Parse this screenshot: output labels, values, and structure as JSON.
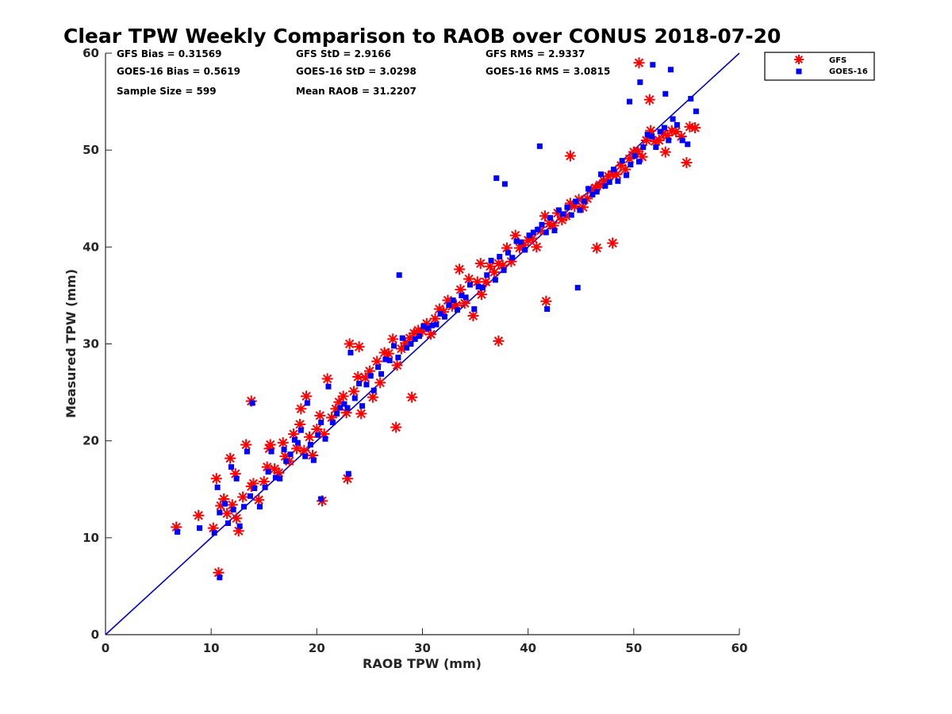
{
  "chart_data": {
    "type": "scatter",
    "title": "Clear TPW Weekly Comparison to RAOB over CONUS 2018-07-20",
    "xlabel": "RAOB TPW (mm)",
    "ylabel": "Measured TPW (mm)",
    "xlim": [
      0,
      60
    ],
    "ylim": [
      0,
      60
    ],
    "xticks": [
      "0",
      "10",
      "20",
      "30",
      "40",
      "50",
      "60"
    ],
    "yticks": [
      "0",
      "10",
      "20",
      "30",
      "40",
      "50",
      "60"
    ],
    "grid": false,
    "legend_position": "top-right outside",
    "stats": [
      {
        "label": "GFS Bias = 0.31569"
      },
      {
        "label": "GFS StD = 2.9166"
      },
      {
        "label": "GFS RMS = 2.9337"
      },
      {
        "label": "GOES-16 Bias = 0.5619"
      },
      {
        "label": "GOES-16 StD = 3.0298"
      },
      {
        "label": "GOES-16 RMS = 3.0815"
      },
      {
        "label": "Sample Size = 599"
      },
      {
        "label": "Mean RAOB = 31.2207"
      }
    ],
    "reference_line": {
      "x": [
        0,
        60
      ],
      "y": [
        0,
        60
      ],
      "color": "#0000cc"
    },
    "series": [
      {
        "name": "GFS",
        "marker": "asterisk",
        "color": "#ff0000",
        "x": [
          6.7,
          8.8,
          10.2,
          10.5,
          10.9,
          11.2,
          11.5,
          11.8,
          12.0,
          12.3,
          12.6,
          13.0,
          13.3,
          13.8,
          14.0,
          14.5,
          15.0,
          15.3,
          15.6,
          16.0,
          16.4,
          16.8,
          17.0,
          17.4,
          17.8,
          18.1,
          18.4,
          18.8,
          19.0,
          19.3,
          19.6,
          20.0,
          20.3,
          20.7,
          21.0,
          21.4,
          21.8,
          22.1,
          22.5,
          22.8,
          23.1,
          23.5,
          23.9,
          24.2,
          24.6,
          25.0,
          25.3,
          25.7,
          26.0,
          26.4,
          26.8,
          27.2,
          27.6,
          28.0,
          28.4,
          28.8,
          29.2,
          29.6,
          30.0,
          30.4,
          30.8,
          31.2,
          31.6,
          32.0,
          32.4,
          32.8,
          33.2,
          33.6,
          34.0,
          34.4,
          34.8,
          35.2,
          35.6,
          36.0,
          36.4,
          36.8,
          37.2,
          37.6,
          38.0,
          38.4,
          38.8,
          39.2,
          39.6,
          40.0,
          40.4,
          40.8,
          41.2,
          41.6,
          42.0,
          42.4,
          42.8,
          43.2,
          43.6,
          44.0,
          44.4,
          44.8,
          45.2,
          45.6,
          46.0,
          46.4,
          46.8,
          47.2,
          47.6,
          48.0,
          48.4,
          48.8,
          49.2,
          49.6,
          50.0,
          50.4,
          50.8,
          51.2,
          51.6,
          52.0,
          52.4,
          52.8,
          53.2,
          53.6,
          54.0,
          54.5,
          55.0,
          55.3,
          55.8,
          13.8,
          27.5,
          29.0,
          10.7,
          22.9,
          37.2,
          41.7,
          50.5,
          51.5,
          35.5,
          12.4,
          18.5,
          15.5,
          20.5,
          24.0,
          33.5,
          44.0,
          48.0,
          53.0,
          46.5
        ],
        "y": [
          11.1,
          12.3,
          11.0,
          16.1,
          13.3,
          14.0,
          12.5,
          18.2,
          13.4,
          16.6,
          10.7,
          14.2,
          19.6,
          15.3,
          15.6,
          13.9,
          15.8,
          17.3,
          19.6,
          17.1,
          16.7,
          19.8,
          18.4,
          17.9,
          20.7,
          19.2,
          21.7,
          19.0,
          24.6,
          20.4,
          18.5,
          21.2,
          22.6,
          20.7,
          26.4,
          22.4,
          23.3,
          24.0,
          24.6,
          22.9,
          30.0,
          25.1,
          26.6,
          22.8,
          26.5,
          27.2,
          24.5,
          28.2,
          26.0,
          29.1,
          29.0,
          30.5,
          27.8,
          29.5,
          30.1,
          30.6,
          31.1,
          31.4,
          31.3,
          32.1,
          31.0,
          32.6,
          33.6,
          33.3,
          34.5,
          33.9,
          34.0,
          35.6,
          34.2,
          36.7,
          32.9,
          36.4,
          35.1,
          36.4,
          38.0,
          37.4,
          38.3,
          38.1,
          39.9,
          38.5,
          41.2,
          39.9,
          40.2,
          40.7,
          40.9,
          40.0,
          41.7,
          43.2,
          42.4,
          42.2,
          43.5,
          42.8,
          43.2,
          44.5,
          44.2,
          44.9,
          44.1,
          45.0,
          45.9,
          46.1,
          46.4,
          46.8,
          47.3,
          47.5,
          47.5,
          48.4,
          48.0,
          49.1,
          49.8,
          49.9,
          49.3,
          51.0,
          52.0,
          50.9,
          51.0,
          51.7,
          51.5,
          52.0,
          51.9,
          51.4,
          48.7,
          52.4,
          52.3,
          24.1,
          21.4,
          24.5,
          6.4,
          16.1,
          30.3,
          34.4,
          59.0,
          55.2,
          38.3,
          12.0,
          23.3,
          19.2,
          13.8,
          29.7,
          37.7,
          49.4,
          40.4,
          49.8,
          39.9
        ]
      },
      {
        "name": "GOES-16",
        "marker": "square",
        "color": "#0000ff",
        "x": [
          6.8,
          8.9,
          10.3,
          10.6,
          10.8,
          11.3,
          11.6,
          11.9,
          12.1,
          12.4,
          12.7,
          13.1,
          13.4,
          13.7,
          14.1,
          14.6,
          15.1,
          15.4,
          15.7,
          16.1,
          16.5,
          16.9,
          17.1,
          17.5,
          17.9,
          18.2,
          18.5,
          18.9,
          19.1,
          19.4,
          19.7,
          20.1,
          20.4,
          20.8,
          21.1,
          21.5,
          21.9,
          22.2,
          22.6,
          22.9,
          23.2,
          23.6,
          24.0,
          24.3,
          24.7,
          25.1,
          25.4,
          25.8,
          26.1,
          26.5,
          26.9,
          27.3,
          27.7,
          28.1,
          28.5,
          28.9,
          29.3,
          29.7,
          30.1,
          30.5,
          30.9,
          31.3,
          31.7,
          32.1,
          32.5,
          32.9,
          33.3,
          33.7,
          34.1,
          34.5,
          34.9,
          35.3,
          35.7,
          36.1,
          36.5,
          36.9,
          37.3,
          37.7,
          38.1,
          38.5,
          38.9,
          39.3,
          39.7,
          40.1,
          40.5,
          40.9,
          41.3,
          41.7,
          42.1,
          42.5,
          42.9,
          43.3,
          43.7,
          44.1,
          44.5,
          44.9,
          45.3,
          45.7,
          46.1,
          46.5,
          46.9,
          47.3,
          47.7,
          48.1,
          48.5,
          48.9,
          49.3,
          49.7,
          50.1,
          50.5,
          50.9,
          51.3,
          51.7,
          52.1,
          52.5,
          52.9,
          53.3,
          53.7,
          54.1,
          54.6,
          55.1,
          55.4,
          55.9,
          13.9,
          27.8,
          10.8,
          20.4,
          23.0,
          37.0,
          41.8,
          51.8,
          53.5,
          49.6,
          41.1,
          44.7,
          37.8,
          50.6,
          53.0
        ],
        "y": [
          10.6,
          11.0,
          10.5,
          15.2,
          12.6,
          13.5,
          11.5,
          17.3,
          12.9,
          16.1,
          11.2,
          13.2,
          18.9,
          14.3,
          15.1,
          13.2,
          15.2,
          16.8,
          18.9,
          16.2,
          16.1,
          19.1,
          17.9,
          18.6,
          20.1,
          19.8,
          21.1,
          18.4,
          23.9,
          19.6,
          18.0,
          20.6,
          21.9,
          20.2,
          25.6,
          21.9,
          22.8,
          23.4,
          23.8,
          23.4,
          29.1,
          24.4,
          25.9,
          23.6,
          25.8,
          26.7,
          25.2,
          27.6,
          26.9,
          28.4,
          28.3,
          29.8,
          28.6,
          30.6,
          29.6,
          30.0,
          30.5,
          30.8,
          31.8,
          31.6,
          31.9,
          32.0,
          33.1,
          32.8,
          34.0,
          34.5,
          33.5,
          35.0,
          34.8,
          36.1,
          33.6,
          35.9,
          35.8,
          37.1,
          38.6,
          36.6,
          39.0,
          37.6,
          39.4,
          38.9,
          40.6,
          40.5,
          39.7,
          41.2,
          41.5,
          41.8,
          42.3,
          41.5,
          43.0,
          41.7,
          43.8,
          43.4,
          44.1,
          43.3,
          44.7,
          43.8,
          44.7,
          46.0,
          45.4,
          45.7,
          47.5,
          46.3,
          46.7,
          48.0,
          46.8,
          48.9,
          47.4,
          48.5,
          49.4,
          48.8,
          50.3,
          51.6,
          51.4,
          50.3,
          51.9,
          52.3,
          51.0,
          53.2,
          52.6,
          51.0,
          50.6,
          55.3,
          54.0,
          23.9,
          37.1,
          5.9,
          14.0,
          16.6,
          47.1,
          33.6,
          58.8,
          58.3,
          55.0,
          50.4,
          35.8,
          46.5,
          57.0,
          55.8
        ]
      }
    ]
  }
}
